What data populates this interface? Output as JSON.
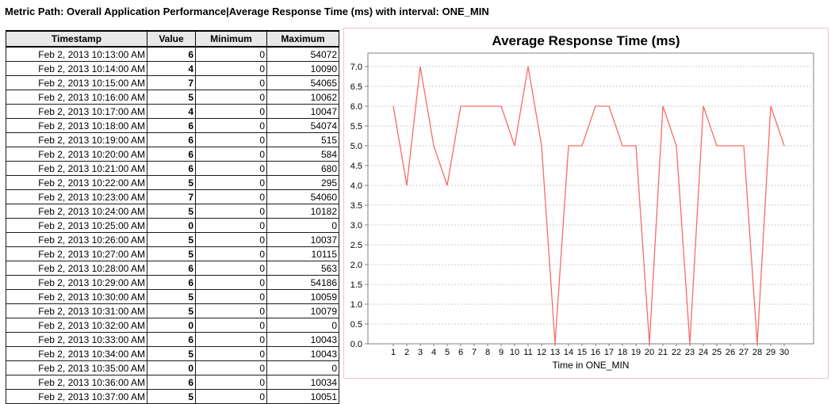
{
  "page_title": "Metric Path: Overall Application Performance|Average Response Time (ms) with interval: ONE_MIN",
  "table": {
    "columns": [
      "Timestamp",
      "Value",
      "Minimum",
      "Maximum"
    ],
    "rows": [
      [
        "Feb 2, 2013 10:13:00 AM",
        "6",
        "0",
        "54072"
      ],
      [
        "Feb 2, 2013 10:14:00 AM",
        "4",
        "0",
        "10090"
      ],
      [
        "Feb 2, 2013 10:15:00 AM",
        "7",
        "0",
        "54065"
      ],
      [
        "Feb 2, 2013 10:16:00 AM",
        "5",
        "0",
        "10062"
      ],
      [
        "Feb 2, 2013 10:17:00 AM",
        "4",
        "0",
        "10047"
      ],
      [
        "Feb 2, 2013 10:18:00 AM",
        "6",
        "0",
        "54074"
      ],
      [
        "Feb 2, 2013 10:19:00 AM",
        "6",
        "0",
        "515"
      ],
      [
        "Feb 2, 2013 10:20:00 AM",
        "6",
        "0",
        "584"
      ],
      [
        "Feb 2, 2013 10:21:00 AM",
        "6",
        "0",
        "680"
      ],
      [
        "Feb 2, 2013 10:22:00 AM",
        "5",
        "0",
        "295"
      ],
      [
        "Feb 2, 2013 10:23:00 AM",
        "7",
        "0",
        "54060"
      ],
      [
        "Feb 2, 2013 10:24:00 AM",
        "5",
        "0",
        "10182"
      ],
      [
        "Feb 2, 2013 10:25:00 AM",
        "0",
        "0",
        "0"
      ],
      [
        "Feb 2, 2013 10:26:00 AM",
        "5",
        "0",
        "10037"
      ],
      [
        "Feb 2, 2013 10:27:00 AM",
        "5",
        "0",
        "10115"
      ],
      [
        "Feb 2, 2013 10:28:00 AM",
        "6",
        "0",
        "563"
      ],
      [
        "Feb 2, 2013 10:29:00 AM",
        "6",
        "0",
        "54186"
      ],
      [
        "Feb 2, 2013 10:30:00 AM",
        "5",
        "0",
        "10059"
      ],
      [
        "Feb 2, 2013 10:31:00 AM",
        "5",
        "0",
        "10079"
      ],
      [
        "Feb 2, 2013 10:32:00 AM",
        "0",
        "0",
        "0"
      ],
      [
        "Feb 2, 2013 10:33:00 AM",
        "6",
        "0",
        "10043"
      ],
      [
        "Feb 2, 2013 10:34:00 AM",
        "5",
        "0",
        "10043"
      ],
      [
        "Feb 2, 2013 10:35:00 AM",
        "0",
        "0",
        "0"
      ],
      [
        "Feb 2, 2013 10:36:00 AM",
        "6",
        "0",
        "10034"
      ],
      [
        "Feb 2, 2013 10:37:00 AM",
        "5",
        "0",
        "10051"
      ]
    ]
  },
  "chart_data": {
    "type": "line",
    "title": "Average Response Time (ms)",
    "xlabel": "Time in ONE_MIN",
    "ylabel": "",
    "x": [
      1,
      2,
      3,
      4,
      5,
      6,
      7,
      8,
      9,
      10,
      11,
      12,
      13,
      14,
      15,
      16,
      17,
      18,
      19,
      20,
      21,
      22,
      23,
      24,
      25,
      26,
      27,
      28,
      29,
      30
    ],
    "values": [
      6,
      4,
      7,
      5,
      4,
      6,
      6,
      6,
      6,
      5,
      7,
      5,
      0,
      5,
      5,
      6,
      6,
      5,
      5,
      0,
      6,
      5,
      0,
      6,
      5,
      5,
      5,
      0,
      6,
      5
    ],
    "ytick_labels": [
      "0.0",
      "0.5",
      "1.0",
      "1.5",
      "2.0",
      "2.5",
      "3.0",
      "3.5",
      "4.0",
      "4.5",
      "5.0",
      "5.5",
      "6.0",
      "6.5",
      "7.0"
    ],
    "ylim": [
      0,
      7.34
    ],
    "grid": true,
    "legend": "none"
  },
  "colors": {
    "line": "#f96a6a",
    "grid": "#cccccc",
    "plot_border": "#808080",
    "panel_border": "#f6c2c6",
    "header_bg": "#e8e8e8",
    "text": "#000000"
  }
}
